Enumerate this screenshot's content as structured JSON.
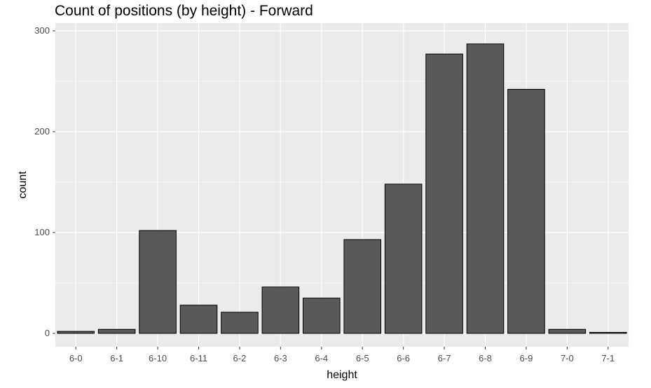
{
  "chart_data": {
    "type": "bar",
    "title": "Count of positions (by height) - Forward",
    "xlabel": "height",
    "ylabel": "count",
    "categories": [
      "6-0",
      "6-1",
      "6-10",
      "6-11",
      "6-2",
      "6-3",
      "6-4",
      "6-5",
      "6-6",
      "6-7",
      "6-8",
      "6-9",
      "7-0",
      "7-1"
    ],
    "values": [
      2,
      4,
      102,
      28,
      21,
      46,
      35,
      93,
      148,
      277,
      287,
      242,
      4,
      1
    ],
    "ylim": [
      0,
      300
    ],
    "yticks": [
      0,
      100,
      200,
      300
    ],
    "grid": true,
    "colors": {
      "bar_fill": "#595959",
      "bar_stroke": "#000000",
      "panel_bg": "#ebebeb",
      "grid": "#ffffff"
    }
  }
}
